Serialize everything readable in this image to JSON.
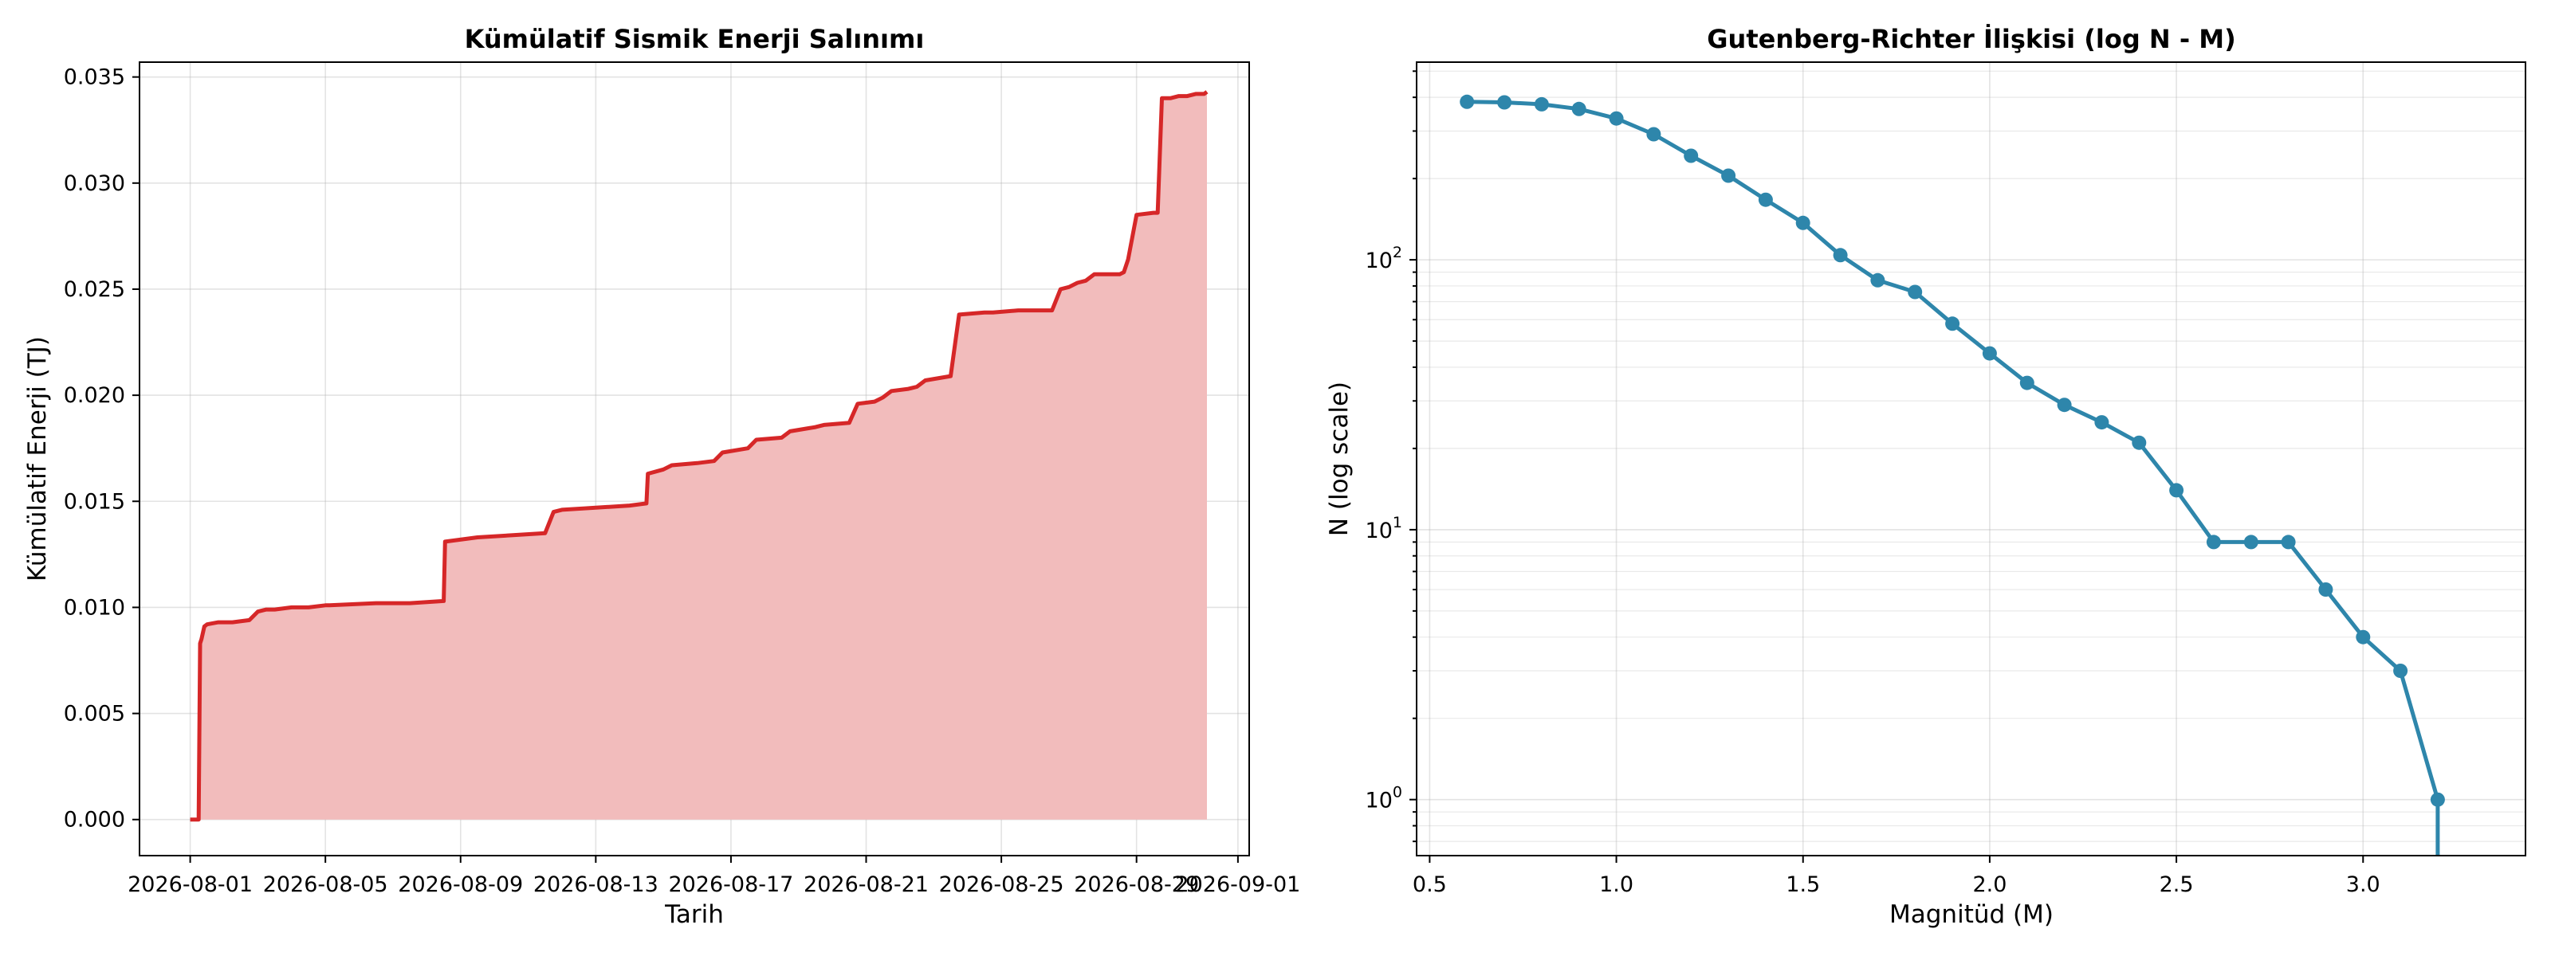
{
  "chart_data": [
    {
      "type": "area",
      "title": "Kümülatif Sismik Enerji Salınımı",
      "xlabel": "Tarih",
      "ylabel": "Kümülatif Enerji (TJ)",
      "x_ticks": [
        "2026-08-01",
        "2026-08-05",
        "2026-08-09",
        "2026-08-13",
        "2026-08-17",
        "2026-08-21",
        "2026-08-25",
        "2026-08-29",
        "2026-09-01"
      ],
      "y_ticks": [
        "0.000",
        "0.005",
        "0.010",
        "0.015",
        "0.020",
        "0.025",
        "0.030",
        "0.035"
      ],
      "xlim": [
        "2026-07-30T12:00",
        "2026-09-01T08:00"
      ],
      "ylim": [
        -0.0017,
        0.0357
      ],
      "grid": true,
      "line_color": "#d62728",
      "fill_color": "#f2bcbc",
      "series": [
        {
          "x": [
            "2026-08-01T00:00",
            "2026-08-01T06:00",
            "2026-08-01T07:00",
            "2026-08-01T08:00",
            "2026-08-01T10:00",
            "2026-08-01T12:00",
            "2026-08-01T20:00",
            "2026-08-02T06:00",
            "2026-08-02T18:00",
            "2026-08-03T00:00",
            "2026-08-03T06:00",
            "2026-08-03T12:00",
            "2026-08-04T00:00",
            "2026-08-04T12:00",
            "2026-08-05T00:00",
            "2026-08-05T03:00",
            "2026-08-06T12:00",
            "2026-08-07T12:00",
            "2026-08-08T12:00",
            "2026-08-08T13:00",
            "2026-08-09T12:00",
            "2026-08-10T12:00",
            "2026-08-11T12:00",
            "2026-08-11T18:00",
            "2026-08-12T00:00",
            "2026-08-13T00:00",
            "2026-08-14T00:00",
            "2026-08-14T12:00",
            "2026-08-14T13:00",
            "2026-08-15T00:00",
            "2026-08-15T06:00",
            "2026-08-16T00:00",
            "2026-08-16T12:00",
            "2026-08-16T18:00",
            "2026-08-17T12:00",
            "2026-08-17T18:00",
            "2026-08-18T12:00",
            "2026-08-18T18:00",
            "2026-08-19T12:00",
            "2026-08-19T18:00",
            "2026-08-20T12:00",
            "2026-08-20T18:00",
            "2026-08-21T06:00",
            "2026-08-21T12:00",
            "2026-08-21T18:00",
            "2026-08-22T06:00",
            "2026-08-22T12:00",
            "2026-08-22T18:00",
            "2026-08-23T12:00",
            "2026-08-23T18:00",
            "2026-08-24T12:00",
            "2026-08-24T18:00",
            "2026-08-25T12:00",
            "2026-08-26T12:00",
            "2026-08-26T18:00",
            "2026-08-27T00:00",
            "2026-08-27T06:00",
            "2026-08-27T12:00",
            "2026-08-27T18:00",
            "2026-08-28T12:00",
            "2026-08-28T15:00",
            "2026-08-28T18:00",
            "2026-08-29T00:00",
            "2026-08-29T12:00",
            "2026-08-29T15:00",
            "2026-08-29T18:00",
            "2026-08-30T00:00",
            "2026-08-30T06:00",
            "2026-08-30T12:00",
            "2026-08-30T18:00",
            "2026-08-31T00:00",
            "2026-08-31T02:00"
          ],
          "values": [
            0.0,
            0.0,
            0.0083,
            0.0085,
            0.0091,
            0.0092,
            0.0093,
            0.0093,
            0.0094,
            0.0098,
            0.0099,
            0.0099,
            0.01,
            0.01,
            0.0101,
            0.0101,
            0.0102,
            0.0102,
            0.0103,
            0.0131,
            0.0133,
            0.0134,
            0.0135,
            0.0145,
            0.0146,
            0.0147,
            0.0148,
            0.0149,
            0.0163,
            0.0165,
            0.0167,
            0.0168,
            0.0169,
            0.0173,
            0.0175,
            0.0179,
            0.018,
            0.0183,
            0.0185,
            0.0186,
            0.0187,
            0.0196,
            0.0197,
            0.0199,
            0.0202,
            0.0203,
            0.0204,
            0.0207,
            0.0209,
            0.0238,
            0.0239,
            0.0239,
            0.024,
            0.024,
            0.025,
            0.0251,
            0.0253,
            0.0254,
            0.0257,
            0.0257,
            0.0258,
            0.0264,
            0.0285,
            0.0286,
            0.0286,
            0.034,
            0.034,
            0.0341,
            0.0341,
            0.0342,
            0.0342,
            0.0343
          ]
        }
      ]
    },
    {
      "type": "line",
      "title": "Gutenberg-Richter İlişkisi (log N - M)",
      "xlabel": "Magnitüd (M)",
      "ylabel": "N (log scale)",
      "y_scale": "log",
      "x_ticks": [
        "0.5",
        "1.0",
        "1.5",
        "2.0",
        "2.5",
        "3.0"
      ],
      "y_ticks": [
        {
          "base": "10",
          "exp": "0"
        },
        {
          "base": "10",
          "exp": "1"
        },
        {
          "base": "10",
          "exp": "2"
        }
      ],
      "xlim": [
        0.465,
        3.435
      ],
      "ylim": [
        0.62,
        540
      ],
      "grid": true,
      "line_color": "#2e86ab",
      "series": [
        {
          "x": [
            0.6,
            0.7,
            0.8,
            0.9,
            1.0,
            1.1,
            1.2,
            1.3,
            1.4,
            1.5,
            1.6,
            1.7,
            1.8,
            1.9,
            2.0,
            2.1,
            2.2,
            2.3,
            2.4,
            2.5,
            2.6,
            2.7,
            2.8,
            2.9,
            3.0,
            3.1,
            3.2
          ],
          "values": [
            385,
            383,
            377,
            362,
            334,
            292,
            243,
            205,
            167,
            137,
            104,
            84,
            76,
            58,
            45,
            35,
            29,
            25,
            21,
            14,
            9,
            9,
            9,
            6,
            4,
            3,
            1
          ]
        }
      ]
    }
  ]
}
